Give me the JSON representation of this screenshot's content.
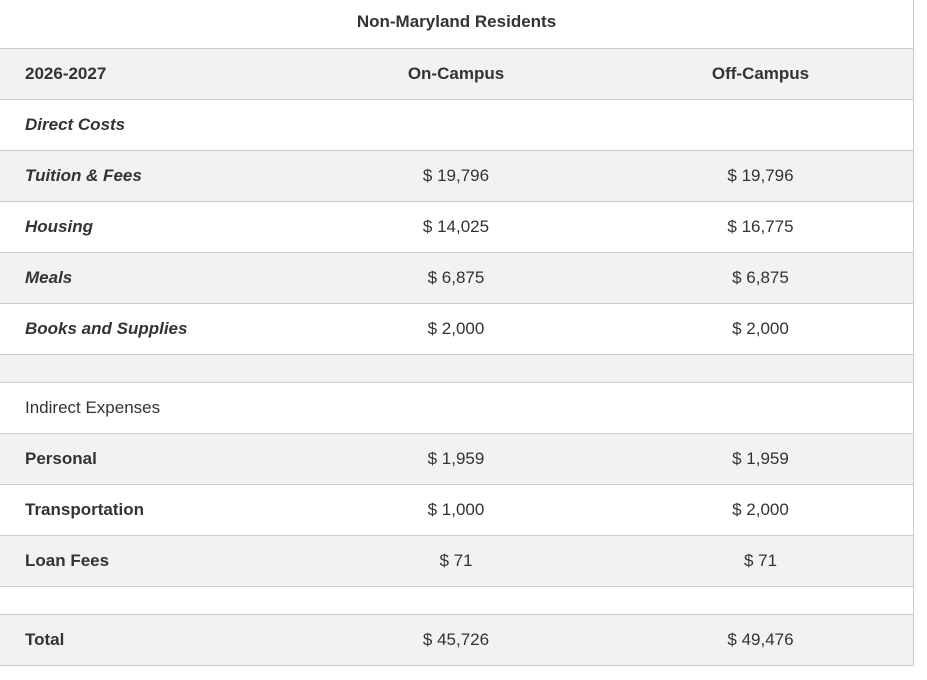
{
  "title": "Non-Maryland Residents",
  "header": {
    "year": "2026-2027",
    "col1": "On-Campus",
    "col2": "Off-Campus"
  },
  "direct": {
    "label": "Direct Costs",
    "rows": [
      {
        "label": "Tuition & Fees",
        "on": "$ 19,796",
        "off": "$ 19,796"
      },
      {
        "label": "Housing",
        "on": "$ 14,025",
        "off": "$ 16,775"
      },
      {
        "label": "Meals",
        "on": "$ 6,875",
        "off": "$ 6,875"
      },
      {
        "label": "Books and Supplies",
        "on": "$ 2,000",
        "off": "$ 2,000"
      }
    ]
  },
  "indirect": {
    "label": "Indirect Expenses",
    "rows": [
      {
        "label": "Personal",
        "on": "$ 1,959",
        "off": "$ 1,959"
      },
      {
        "label": "Transportation",
        "on": "$ 1,000",
        "off": "$ 2,000"
      },
      {
        "label": "Loan Fees",
        "on": "$ 71",
        "off": "$ 71"
      }
    ]
  },
  "total": {
    "label": "Total",
    "on": "$ 45,726",
    "off": "$ 49,476"
  }
}
